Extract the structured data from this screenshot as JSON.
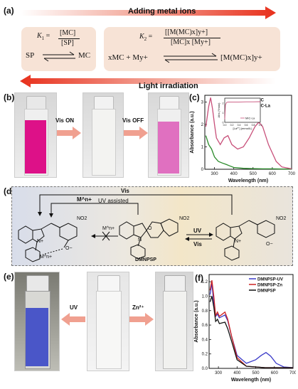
{
  "panels": {
    "a": {
      "label": "(a)",
      "top_arrow_text": "Adding metal ions",
      "bottom_arrow_text": "Light irradiation",
      "eq1": {
        "k_label": "K",
        "k_sub": "1",
        "numer": "[MC]",
        "denom": "[SP]",
        "left": "SP",
        "right": "MC"
      },
      "eq2": {
        "k_label": "K",
        "k_sub": "2",
        "numer": "[[M(MC)x]y+]",
        "denom": "[MC]x [My+]",
        "left": "xMC + My+",
        "right": "[M(MC)x]y+"
      }
    },
    "b": {
      "label": "(b)",
      "arrow1": "Vis ON",
      "arrow2": "Vis OFF"
    },
    "c": {
      "label": "(c)"
    },
    "d": {
      "label": "(d)",
      "top_label": "Vis",
      "mid_label": "M^n+",
      "uv_assisted": "UV assisted",
      "no2": "NO2",
      "cross_label": "M^n+",
      "uv_label": "UV",
      "vis_label": "Vis",
      "compound_name": "DMNPSP",
      "metal_label": "M^n+",
      "n_plus": "N+",
      "o_minus": "O−",
      "o_label": "O",
      "n_label": "N"
    },
    "e": {
      "label": "(e)",
      "arrow1": "UV",
      "arrow2": "Zn²⁺"
    },
    "f": {
      "label": "(f)"
    }
  },
  "chart_data": [
    {
      "type": "line",
      "panel": "c",
      "xlabel": "Wavelength (nm)",
      "ylabel": "Absorbance (a.u.)",
      "xlim": [
        250,
        700
      ],
      "ylim": [
        0,
        3.3
      ],
      "xticks": [
        300,
        400,
        500,
        600,
        700
      ],
      "yticks": [
        0,
        1,
        2,
        3
      ],
      "legend_position": "top-right",
      "colors": {
        "MIC": "#2a8a2a",
        "MIC-La": "#c8507a"
      },
      "series": [
        {
          "name": "MIC",
          "x": [
            255,
            270,
            285,
            300,
            320,
            340,
            360,
            380,
            400,
            450,
            500,
            550,
            600,
            650,
            700
          ],
          "y": [
            1.5,
            1.1,
            0.9,
            0.55,
            0.35,
            0.28,
            0.22,
            0.15,
            0.08,
            0.04,
            0.03,
            0.02,
            0.02,
            0.01,
            0.01
          ]
        },
        {
          "name": "MIC-La",
          "x": [
            255,
            270,
            280,
            290,
            300,
            310,
            330,
            350,
            370,
            390,
            420,
            450,
            480,
            510,
            530,
            550,
            580,
            620,
            650,
            700
          ],
          "y": [
            1.9,
            2.8,
            3.2,
            2.7,
            2.0,
            1.4,
            1.1,
            1.4,
            1.5,
            1.1,
            0.9,
            1.0,
            1.4,
            1.9,
            2.1,
            1.9,
            1.1,
            0.35,
            0.1,
            0.02
          ]
        }
      ],
      "inset": {
        "ylabel": "Abs (Ymax)",
        "xlabel": "[La³⁺] (mmol/L)",
        "xticks": [
          0.0,
          0.2,
          0.4,
          0.6,
          0.8,
          1.0
        ],
        "yticks": [
          0,
          1,
          2
        ],
        "series_name": "MIC-La",
        "x": [
          0.0,
          0.02,
          0.05,
          0.1,
          0.2,
          0.4,
          0.6,
          0.8,
          1.0
        ],
        "y": [
          0.3,
          1.8,
          2.05,
          2.1,
          2.1,
          2.1,
          2.12,
          2.12,
          2.13
        ]
      }
    },
    {
      "type": "line",
      "panel": "f",
      "xlabel": "Wavelength (nm)",
      "ylabel": "Absorbance (a.u.)",
      "xlim": [
        250,
        700
      ],
      "ylim": [
        0,
        1.3
      ],
      "xticks": [
        300,
        400,
        500,
        600,
        700
      ],
      "yticks": [
        0.0,
        0.2,
        0.4,
        0.6,
        0.8,
        1.0,
        1.2
      ],
      "legend_position": "top-right",
      "colors": {
        "DMNPSP-UV": "#3a3ac8",
        "DMNPSP-Zn": "#cc2222",
        "DMNPSP": "#111111"
      },
      "series": [
        {
          "name": "DMNPSP-UV",
          "x": [
            255,
            265,
            275,
            285,
            295,
            305,
            320,
            335,
            350,
            370,
            400,
            450,
            500,
            530,
            555,
            580,
            610,
            650,
            700
          ],
          "y": [
            1.02,
            1.18,
            0.9,
            0.72,
            0.75,
            0.7,
            0.72,
            0.74,
            0.66,
            0.45,
            0.18,
            0.07,
            0.12,
            0.18,
            0.22,
            0.17,
            0.07,
            0.02,
            0.01
          ]
        },
        {
          "name": "DMNPSP-Zn",
          "x": [
            255,
            265,
            275,
            285,
            295,
            305,
            320,
            335,
            350,
            370,
            400,
            450,
            500,
            550,
            600,
            650,
            700
          ],
          "y": [
            1.08,
            1.22,
            1.0,
            0.73,
            0.78,
            0.72,
            0.75,
            0.78,
            0.68,
            0.45,
            0.15,
            0.03,
            0.02,
            0.01,
            0.01,
            0.01,
            0.01
          ]
        },
        {
          "name": "DMNPSP",
          "x": [
            255,
            265,
            275,
            285,
            295,
            305,
            320,
            335,
            350,
            370,
            400,
            450,
            500,
            550,
            600,
            650,
            700
          ],
          "y": [
            0.92,
            1.0,
            0.85,
            0.65,
            0.68,
            0.62,
            0.63,
            0.64,
            0.55,
            0.38,
            0.12,
            0.03,
            0.02,
            0.01,
            0.01,
            0.01,
            0.01
          ]
        }
      ]
    }
  ]
}
